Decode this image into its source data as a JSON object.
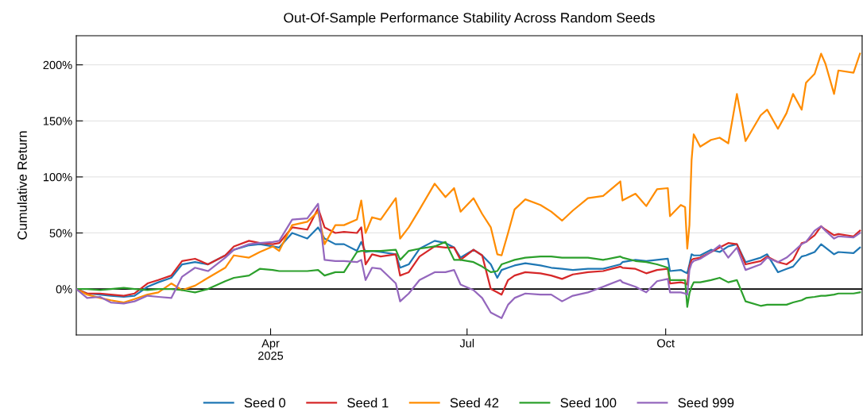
{
  "chart_data": {
    "type": "line",
    "title": "Out-Of-Sample Performance Stability Across Random Seeds",
    "ylabel": "Cumulative Return",
    "x": [
      "2025-01-01",
      "2025-01-06",
      "2025-01-12",
      "2025-01-17",
      "2025-01-23",
      "2025-01-28",
      "2025-02-03",
      "2025-02-08",
      "2025-02-14",
      "2025-02-19",
      "2025-02-25",
      "2025-03-03",
      "2025-03-11",
      "2025-03-15",
      "2025-03-22",
      "2025-03-27",
      "2025-04-02",
      "2025-04-05",
      "2025-04-11",
      "2025-04-18",
      "2025-04-23",
      "2025-04-26",
      "2025-05-01",
      "2025-05-05",
      "2025-05-11",
      "2025-05-13",
      "2025-05-15",
      "2025-05-18",
      "2025-05-22",
      "2025-05-29",
      "2025-05-31",
      "2025-06-04",
      "2025-06-09",
      "2025-06-16",
      "2025-06-21",
      "2025-06-25",
      "2025-06-28",
      "2025-07-04",
      "2025-07-08",
      "2025-07-12",
      "2025-07-15",
      "2025-07-17",
      "2025-07-20",
      "2025-07-23",
      "2025-07-28",
      "2025-08-04",
      "2025-08-09",
      "2025-08-14",
      "2025-08-19",
      "2025-08-26",
      "2025-09-02",
      "2025-09-10",
      "2025-09-11",
      "2025-09-17",
      "2025-09-22",
      "2025-09-27",
      "2025-10-02",
      "2025-10-03",
      "2025-10-08",
      "2025-10-10",
      "2025-10-11",
      "2025-10-12",
      "2025-10-13",
      "2025-10-14",
      "2025-10-17",
      "2025-10-22",
      "2025-10-26",
      "2025-10-30",
      "2025-11-03",
      "2025-11-07",
      "2025-11-14",
      "2025-11-17",
      "2025-11-22",
      "2025-11-26",
      "2025-11-29",
      "2025-12-03",
      "2025-12-05",
      "2025-12-09",
      "2025-12-12",
      "2025-12-14",
      "2025-12-18",
      "2025-12-20",
      "2025-12-27",
      "2025-12-30"
    ],
    "series": [
      {
        "name": "Seed 0",
        "color": "#1f77b4",
        "values": [
          0,
          -4,
          -5,
          -6,
          -7,
          -6,
          2,
          6,
          10,
          22,
          24,
          22,
          30,
          35,
          39,
          40,
          38,
          37,
          50,
          45,
          55,
          45,
          40,
          40,
          34,
          42,
          33,
          34,
          33,
          31,
          19,
          22,
          36,
          43,
          41,
          37,
          28,
          35,
          30,
          22,
          10,
          17,
          19,
          21,
          23,
          21,
          19,
          18,
          17,
          18,
          18,
          22,
          24,
          26,
          25,
          26,
          27,
          16,
          17,
          15,
          14,
          22,
          31,
          30,
          30,
          35,
          33,
          38,
          40,
          24,
          28,
          31,
          15,
          18,
          20,
          29,
          30,
          33,
          40,
          37,
          31,
          33,
          32,
          37
        ]
      },
      {
        "name": "Seed 1",
        "color": "#d62728",
        "values": [
          0,
          -4,
          -4,
          -5,
          -6,
          -4,
          5,
          8,
          12,
          25,
          27,
          22,
          30,
          38,
          43,
          41,
          40,
          41,
          55,
          53,
          72,
          55,
          50,
          51,
          50,
          55,
          22,
          31,
          29,
          31,
          12,
          15,
          29,
          38,
          37,
          37,
          26,
          35,
          30,
          0,
          -3,
          -5,
          8,
          12,
          15,
          14,
          12,
          9,
          13,
          15,
          16,
          20,
          19,
          18,
          14,
          17,
          18,
          5,
          6,
          5,
          4,
          20,
          26,
          27,
          28,
          33,
          37,
          41,
          40,
          22,
          25,
          29,
          24,
          22,
          26,
          41,
          42,
          48,
          56,
          53,
          48,
          49,
          47,
          52
        ]
      },
      {
        "name": "Seed 42",
        "color": "#ff8c00",
        "values": [
          0,
          -5,
          -8,
          -10,
          -12,
          -9,
          -5,
          -3,
          5,
          -1,
          3,
          10,
          19,
          30,
          28,
          33,
          38,
          34,
          57,
          60,
          69,
          40,
          57,
          57,
          62,
          79,
          50,
          64,
          62,
          81,
          45,
          55,
          71,
          94,
          82,
          90,
          69,
          81,
          67,
          55,
          31,
          30,
          50,
          71,
          80,
          75,
          69,
          61,
          70,
          81,
          83,
          96,
          79,
          85,
          74,
          89,
          90,
          65,
          75,
          73,
          36,
          57,
          115,
          138,
          127,
          133,
          135,
          130,
          174,
          132,
          155,
          160,
          143,
          157,
          174,
          160,
          184,
          192,
          210,
          201,
          174,
          195,
          193,
          210
        ]
      },
      {
        "name": "Seed 100",
        "color": "#2ca02c",
        "values": [
          0,
          0,
          -1,
          0,
          1,
          0,
          -1,
          0,
          0,
          -1,
          -3,
          0,
          7,
          10,
          12,
          18,
          17,
          16,
          16,
          16,
          17,
          12,
          15,
          15,
          33,
          34,
          34,
          34,
          34,
          35,
          26,
          34,
          36,
          38,
          42,
          26,
          26,
          24,
          20,
          15,
          16,
          22,
          24,
          26,
          28,
          29,
          29,
          28,
          28,
          28,
          26,
          29,
          28,
          25,
          24,
          22,
          19,
          8,
          8,
          8,
          -16,
          -4,
          2,
          6,
          6,
          8,
          10,
          6,
          8,
          -11,
          -15,
          -14,
          -14,
          -14,
          -12,
          -10,
          -8,
          -7,
          -6,
          -6,
          -5,
          -4,
          -4,
          -3
        ]
      },
      {
        "name": "Seed 999",
        "color": "#9467bd",
        "values": [
          0,
          -8,
          -7,
          -12,
          -13,
          -11,
          -6,
          -7,
          -8,
          11,
          19,
          16,
          28,
          35,
          40,
          41,
          42,
          43,
          62,
          63,
          76,
          26,
          25,
          25,
          24,
          26,
          8,
          19,
          18,
          5,
          -11,
          -4,
          8,
          15,
          15,
          17,
          4,
          -1,
          -8,
          -21,
          -24,
          -26,
          -14,
          -8,
          -4,
          -5,
          -5,
          -11,
          -6,
          -3,
          2,
          8,
          6,
          2,
          -3,
          7,
          9,
          -3,
          -3,
          -4,
          -5,
          17,
          23,
          25,
          27,
          33,
          39,
          28,
          37,
          17,
          22,
          28,
          24,
          28,
          33,
          40,
          42,
          52,
          56,
          52,
          45,
          47,
          46,
          50
        ]
      }
    ],
    "xlim": [
      "2025-01-01",
      "2025-12-31"
    ],
    "xticks": [
      {
        "value": "2025-04-01",
        "label": "Apr\n2025"
      },
      {
        "value": "2025-07-01",
        "label": "Jul"
      },
      {
        "value": "2025-10-01",
        "label": "Oct"
      }
    ],
    "ylim": [
      -41,
      226
    ],
    "yticks": [
      {
        "value": 0,
        "label": "0%"
      },
      {
        "value": 50,
        "label": "50%"
      },
      {
        "value": 100,
        "label": "100%"
      },
      {
        "value": 150,
        "label": "150%"
      },
      {
        "value": 200,
        "label": "200%"
      }
    ],
    "ref_lines": [
      {
        "axis": "y",
        "value": 0,
        "color": "#000000"
      }
    ],
    "grid": "y",
    "legend": "bottom",
    "marker": "none",
    "line_style": "solid"
  }
}
